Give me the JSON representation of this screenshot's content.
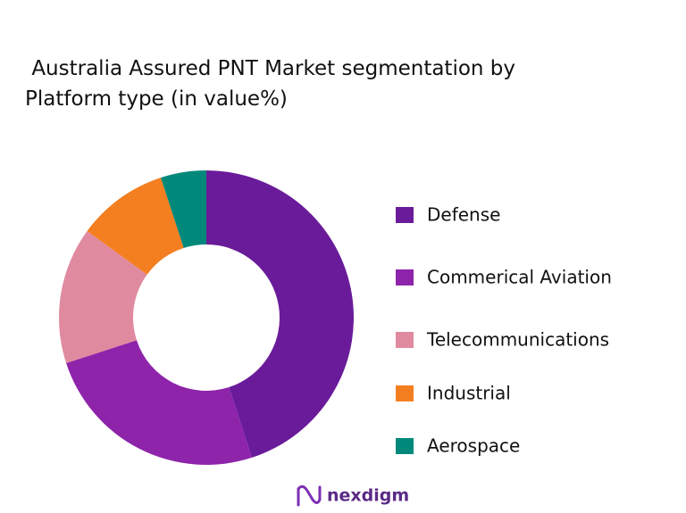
{
  "chart_data": {
    "type": "donut",
    "title": " Australia Assured PNT Market segmentation by Platform type (in value%)",
    "categories": [
      "Defense",
      "Commerical Aviation",
      "Telecommunications",
      "Industrial",
      "Aerospace"
    ],
    "values": [
      45,
      25,
      15,
      10,
      5
    ],
    "colors": [
      "#6a1b9a",
      "#8e24aa",
      "#e08aa0",
      "#f47f20",
      "#00897b"
    ],
    "legend": "right"
  },
  "logo": "nexdigm"
}
